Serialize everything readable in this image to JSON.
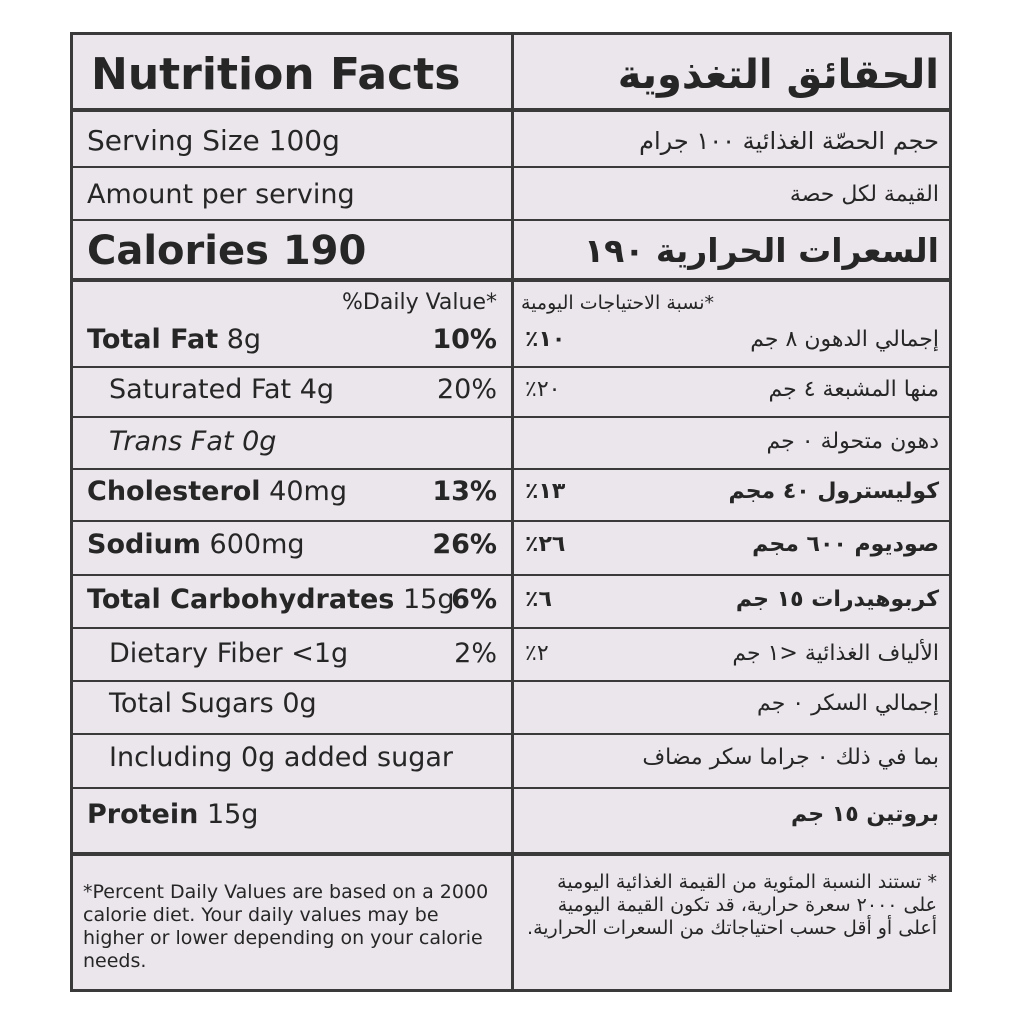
{
  "header": {
    "title": "Nutrition Facts",
    "title_ar": "الحقائق التغذوية"
  },
  "serving": {
    "text": "Serving Size 100g",
    "text_ar": "حجم الحصّة الغذائية ١٠٠ جرام"
  },
  "amount_per_serving": {
    "text": "Amount per serving",
    "text_ar": "القيمة لكل حصة"
  },
  "calories": {
    "text": "Calories 190",
    "text_ar": "السعرات الحرارية ١٩٠"
  },
  "daily_value_header": {
    "text": "%Daily Value*",
    "text_ar": "*نسبة الاحتياجات اليومية"
  },
  "nutrients": [
    {
      "name": "Total Fat",
      "amount": "8g",
      "dv": "10%",
      "name_ar": "إجمالي الدهون ٨ جم",
      "dv_ar": "١٠٪"
    },
    {
      "name": "Saturated Fat",
      "amount": "4g",
      "dv": "20%",
      "name_ar": "منها المشبعة ٤ جم",
      "dv_ar": "٢٠٪"
    },
    {
      "name": "Trans Fat",
      "amount": "0g",
      "name_ar": "دهون متحولة ٠ جم"
    },
    {
      "name": "Cholesterol",
      "amount": "40mg",
      "dv": "13%",
      "name_ar": "كوليسترول ٤٠ مجم",
      "dv_ar": "١٣٪"
    },
    {
      "name": "Sodium",
      "amount": "600mg",
      "dv": "26%",
      "name_ar": "صوديوم ٦٠٠ مجم",
      "dv_ar": "٢٦٪"
    },
    {
      "name": "Total Carbohydrates",
      "amount": "15g",
      "dv": "6%",
      "name_ar": "كربوهيدرات ١٥ جم",
      "dv_ar": "٦٪"
    },
    {
      "name": "Dietary Fiber",
      "amount": "<1g",
      "dv": "2%",
      "name_ar": "الألياف الغذائية <١ جم",
      "dv_ar": "٢٪"
    },
    {
      "name": "Total Sugars",
      "amount": "0g",
      "name_ar": "إجمالي السكر ٠ جم"
    },
    {
      "name": "Including 0g added sugar",
      "name_ar": "بما في ذلك ٠ جراما سكر مضاف"
    },
    {
      "name": "Protein",
      "amount": "15g",
      "name_ar": "بروتين ١٥ جم"
    }
  ],
  "footnote": {
    "text": "*Percent Daily Values are based on a 2000 calorie diet. Your daily values may be higher or lower depending on your calorie needs.",
    "text_ar": "* تستند النسبة المئوية من القيمة الغذائية اليومية على ٢٠٠٠ سعرة حرارية، قد تكون القيمة اليومية أعلى أو أقل حسب احتياجاتك من السعرات الحرارية."
  }
}
